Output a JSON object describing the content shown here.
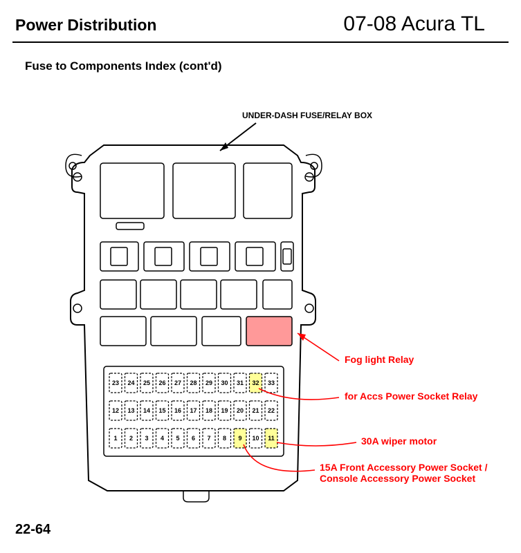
{
  "header": {
    "left": "Power Distribution",
    "right": "07-08 Acura TL"
  },
  "subtitle": "Fuse to Components Index (cont'd)",
  "callout_top": "UNDER-DASH FUSE/RELAY BOX",
  "page_number": "22-64",
  "diagram": {
    "fuse_rows": {
      "top": [
        "23",
        "24",
        "25",
        "26",
        "27",
        "28",
        "29",
        "30",
        "31",
        "32",
        "33"
      ],
      "middle": [
        "12",
        "13",
        "14",
        "15",
        "16",
        "17",
        "18",
        "19",
        "20",
        "21",
        "22"
      ],
      "bottom": [
        "1",
        "2",
        "3",
        "4",
        "5",
        "6",
        "7",
        "8",
        "9",
        "10",
        "11"
      ]
    },
    "highlights": {
      "yellow_fuses": [
        "32",
        "9",
        "11"
      ],
      "pink_relay": true
    },
    "colors": {
      "outline": "#000000",
      "highlight_yellow": "#ffff99",
      "highlight_pink": "#ff9999",
      "annotation_red": "#ff0000",
      "background": "#ffffff"
    }
  },
  "annotations": [
    {
      "key": "fog",
      "text": "Fog light Relay",
      "color": "#ff0000"
    },
    {
      "key": "accs",
      "text": "for Accs Power Socket Relay",
      "color": "#ff0000"
    },
    {
      "key": "wiper",
      "text": "30A wiper motor",
      "color": "#ff0000"
    },
    {
      "key": "front",
      "text": "15A Front Accessory Power Socket /\nConsole Accessory Power Socket",
      "color": "#ff0000"
    }
  ]
}
